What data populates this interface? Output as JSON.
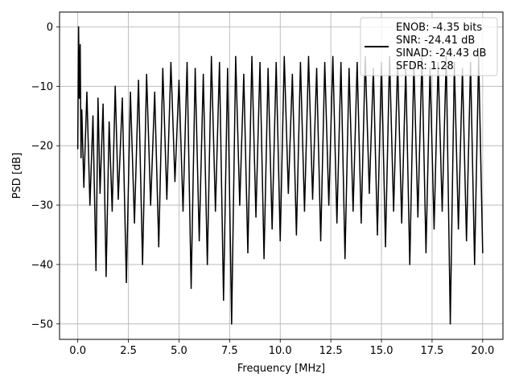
{
  "chart_data": {
    "type": "line",
    "title": "",
    "xlabel": "Frequency [MHz]",
    "ylabel": "PSD [dB]",
    "xlim": [
      -0.9,
      21.0
    ],
    "ylim": [
      -52.6,
      2.5
    ],
    "xticks": [
      0.0,
      2.5,
      5.0,
      7.5,
      10.0,
      12.5,
      15.0,
      17.5,
      20.0
    ],
    "xtick_labels": [
      "0.0",
      "2.5",
      "5.0",
      "7.5",
      "10.0",
      "12.5",
      "15.0",
      "17.5",
      "20.0"
    ],
    "yticks": [
      0,
      -10,
      -20,
      -30,
      -40,
      -50
    ],
    "ytick_labels": [
      "0",
      "−10",
      "−20",
      "−30",
      "−40",
      "−50"
    ],
    "grid": true,
    "legend_position": "top-right",
    "legend_lines": [
      "ENOB: -4.35 bits",
      "SNR: -24.41 dB",
      "SINAD: -24.43 dB",
      "SFDR: 1.28"
    ],
    "series": [
      {
        "color": "#000000",
        "x": [
          0.0,
          0.04,
          0.08,
          0.12,
          0.16,
          0.2,
          0.3,
          0.45,
          0.6,
          0.75,
          0.9,
          1.0,
          1.1,
          1.25,
          1.4,
          1.55,
          1.7,
          1.85,
          2.0,
          2.2,
          2.4,
          2.6,
          2.8,
          3.0,
          3.2,
          3.4,
          3.6,
          3.8,
          4.0,
          4.2,
          4.4,
          4.6,
          4.8,
          5.0,
          5.2,
          5.4,
          5.6,
          5.8,
          6.0,
          6.2,
          6.4,
          6.6,
          6.8,
          7.0,
          7.2,
          7.4,
          7.6,
          7.8,
          8.0,
          8.2,
          8.4,
          8.6,
          8.8,
          9.0,
          9.2,
          9.4,
          9.6,
          9.8,
          10.0,
          10.2,
          10.4,
          10.6,
          10.8,
          11.0,
          11.2,
          11.4,
          11.6,
          11.8,
          12.0,
          12.2,
          12.4,
          12.6,
          12.8,
          13.0,
          13.2,
          13.4,
          13.6,
          13.8,
          14.0,
          14.2,
          14.4,
          14.6,
          14.8,
          15.0,
          15.2,
          15.4,
          15.6,
          15.8,
          16.0,
          16.2,
          16.4,
          16.6,
          16.8,
          17.0,
          17.2,
          17.4,
          17.6,
          17.8,
          18.0,
          18.2,
          18.4,
          18.6,
          18.8,
          19.0,
          19.2,
          19.4,
          19.6,
          19.8,
          20.0
        ],
        "y": [
          -20.5,
          0.0,
          -12.0,
          -3.0,
          -22.0,
          -14.0,
          -27.0,
          -11.0,
          -30.0,
          -15.0,
          -41.0,
          -12.0,
          -28.0,
          -13.0,
          -42.0,
          -16.0,
          -31.0,
          -10.0,
          -29.0,
          -12.0,
          -43.0,
          -11.0,
          -33.0,
          -9.0,
          -40.0,
          -8.0,
          -30.0,
          -11.0,
          -37.0,
          -7.0,
          -29.0,
          -6.0,
          -26.0,
          -9.0,
          -31.0,
          -6.0,
          -44.0,
          -7.0,
          -36.0,
          -8.0,
          -40.0,
          -5.0,
          -31.0,
          -6.0,
          -46.0,
          -7.0,
          -50.0,
          -5.0,
          -30.0,
          -8.0,
          -38.0,
          -5.0,
          -32.0,
          -6.0,
          -39.0,
          -7.0,
          -34.0,
          -6.0,
          -36.0,
          -5.0,
          -28.0,
          -8.0,
          -35.0,
          -6.0,
          -31.0,
          -5.0,
          -29.0,
          -7.0,
          -36.0,
          -6.0,
          -30.0,
          -5.0,
          -33.0,
          -6.0,
          -39.0,
          -7.0,
          -31.0,
          -6.0,
          -33.0,
          -5.0,
          -28.0,
          -7.0,
          -35.0,
          -6.0,
          -37.0,
          -5.0,
          -31.0,
          -6.0,
          -33.0,
          -7.0,
          -40.0,
          -6.0,
          -32.0,
          -5.0,
          -38.0,
          -7.0,
          -34.0,
          -6.0,
          -31.0,
          -5.0,
          -50.0,
          -6.0,
          -34.0,
          -7.0,
          -36.0,
          -6.0,
          -40.0,
          -5.0,
          -38.0
        ]
      }
    ]
  }
}
